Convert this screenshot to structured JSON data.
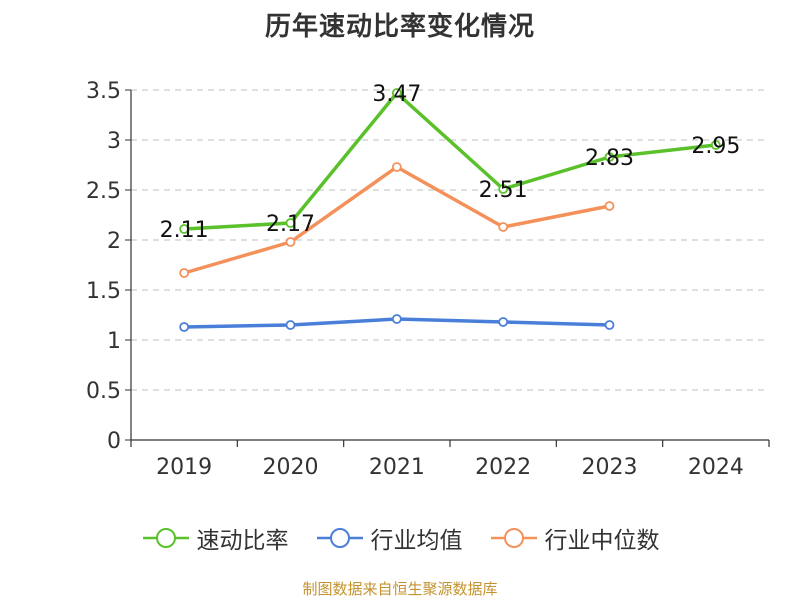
{
  "chart_data": {
    "type": "line",
    "title": "历年速动比率变化情况",
    "xlabel": "",
    "ylabel": "",
    "categories": [
      "2019",
      "2020",
      "2021",
      "2022",
      "2023",
      "2024"
    ],
    "ylim": [
      0,
      3.5
    ],
    "yticks": [
      "0",
      "0.5",
      "1",
      "1.5",
      "2",
      "2.5",
      "3",
      "3.5"
    ],
    "ytick_values": [
      0,
      0.5,
      1,
      1.5,
      2,
      2.5,
      3,
      3.5
    ],
    "grid": "horizontal dashed",
    "legend_position": "bottom",
    "series": [
      {
        "name": "速动比率",
        "color": "#5ac12a",
        "values": [
          2.11,
          2.17,
          3.47,
          2.51,
          2.83,
          2.95
        ],
        "labels": [
          "2.11",
          "2.17",
          "3.47",
          "2.51",
          "2.83",
          "2.95"
        ],
        "show_markers": true,
        "show_labels": true
      },
      {
        "name": "行业均值",
        "color": "#4a7fd9",
        "values": [
          1.13,
          1.15,
          1.21,
          1.18,
          1.15,
          null
        ],
        "show_markers": true,
        "show_labels": false
      },
      {
        "name": "行业中位数",
        "color": "#f4915a",
        "values": [
          1.67,
          1.98,
          2.73,
          2.13,
          2.34,
          null
        ],
        "show_markers": true,
        "show_labels": false
      }
    ]
  },
  "footer": {
    "credit": "制图数据来自恒生聚源数据库"
  }
}
